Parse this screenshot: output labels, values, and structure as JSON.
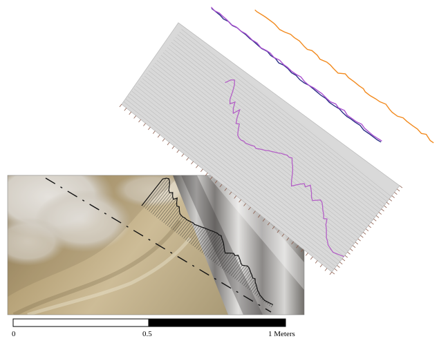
{
  "scale_bar": {
    "labels": [
      "0",
      "0.5",
      "1 Meters"
    ],
    "segments": [
      "white",
      "black"
    ]
  },
  "colors": {
    "profile_line": "#b35fc6",
    "profile_panel": "#d9d9d9",
    "panel_grid": "#b9b9b9",
    "trace_purple": "#a84fcf",
    "trace_navy": "#2b2f86",
    "trace_orange": "#f28a1e",
    "terrain_light": "#e7e4dc",
    "terrain_tan": "#a8956a",
    "axis_ticks": "#8a5a4a"
  },
  "profile": {
    "relative_elevation": [
      0.82,
      0.95,
      1.0,
      0.92,
      0.78,
      0.6,
      0.52,
      0.62,
      0.48,
      0.4,
      0.55,
      0.38,
      0.26,
      0.3,
      0.18,
      0.08,
      0.05,
      0.04,
      0.06,
      0.05,
      0.07,
      0.09,
      0.12,
      0.1,
      0.14,
      0.17,
      0.2,
      0.24,
      0.27,
      0.3,
      0.33,
      0.37,
      0.39,
      0.42,
      0.41,
      0.44,
      0.36,
      0.3,
      0.22,
      0.12,
      0.02,
      -0.06,
      0.02,
      0.1,
      0.16,
      0.12,
      0.22,
      0.16,
      0.1,
      0.02,
      -0.02,
      0.04,
      0.1,
      0.08,
      0.02,
      -0.05,
      -0.1,
      -0.18,
      -0.14,
      -0.26,
      -0.32,
      -0.4,
      -0.48,
      -0.52,
      -0.58,
      -0.6,
      -0.62,
      -0.64,
      -0.62,
      -0.6,
      -0.58,
      -0.56
    ]
  }
}
